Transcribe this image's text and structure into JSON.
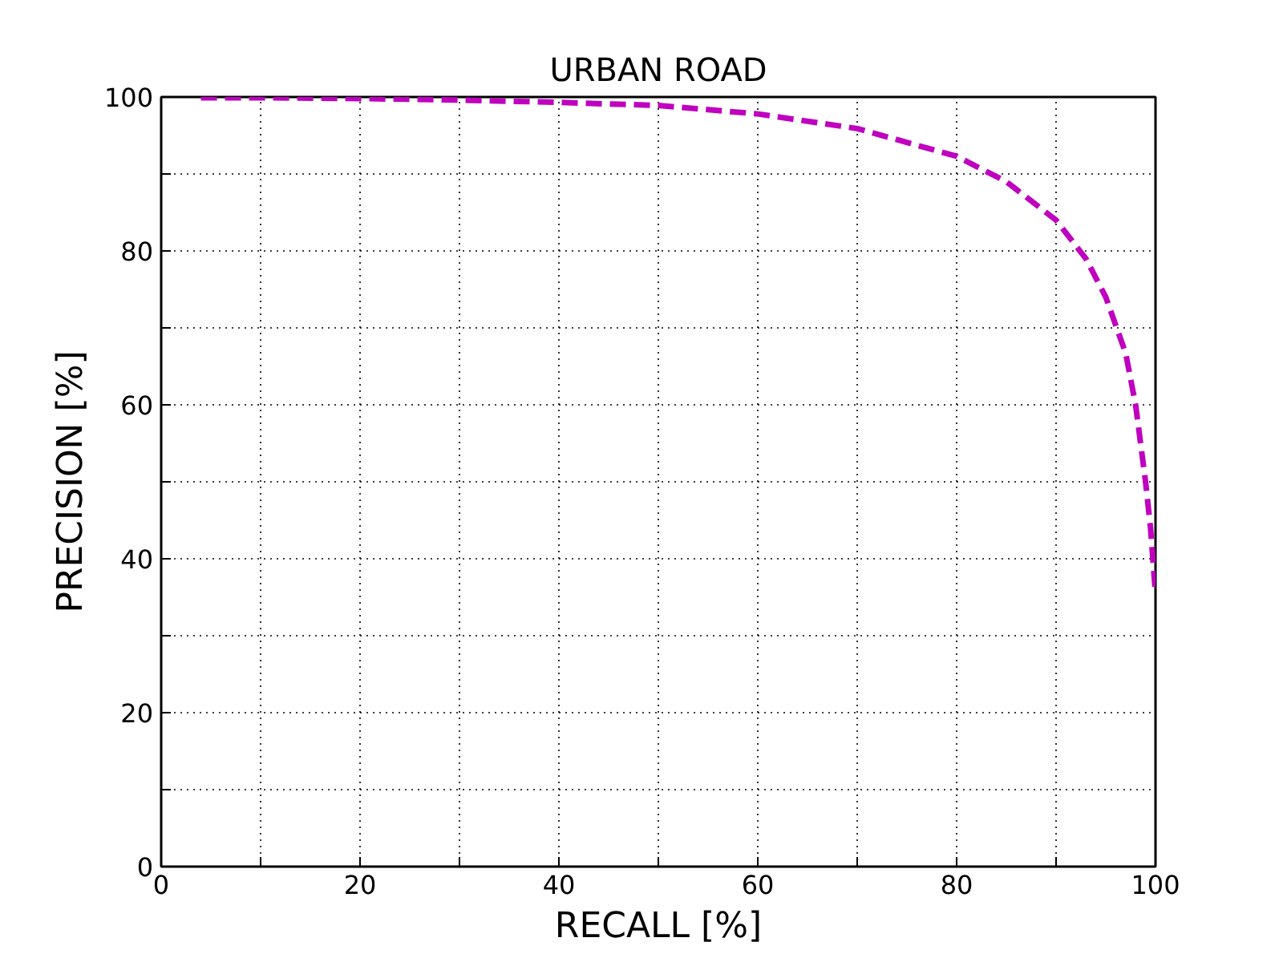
{
  "chart_data": {
    "type": "line",
    "title": "URBAN ROAD",
    "xlabel": "RECALL [%]",
    "ylabel": "PRECISION [%]",
    "x": [
      4,
      10,
      20,
      30,
      40,
      50,
      60,
      70,
      80,
      85,
      90,
      93,
      95,
      97,
      98,
      99,
      99.5,
      100
    ],
    "series": [
      {
        "color": "#bf00bf",
        "values": [
          99.9,
          99.9,
          99.8,
          99.6,
          99.3,
          98.9,
          97.8,
          95.9,
          92.3,
          89,
          84,
          79,
          74,
          66.7,
          60,
          50,
          44,
          35.4
        ]
      }
    ],
    "xlim": [
      0,
      100
    ],
    "ylim": [
      0,
      100
    ],
    "xticks": [
      0,
      {
        "value": 10,
        "label": null
      },
      20,
      {
        "value": 30,
        "label": null
      },
      40,
      {
        "value": 50,
        "label": null
      },
      60,
      {
        "value": 70,
        "label": null
      },
      80,
      {
        "value": 90,
        "label": null
      },
      100
    ],
    "yticks": [
      0,
      {
        "value": 10,
        "label": null
      },
      20,
      {
        "value": 30,
        "label": null
      },
      40,
      {
        "value": 50,
        "label": null
      },
      60,
      {
        "value": 70,
        "label": null
      },
      80,
      {
        "value": 90,
        "label": null
      },
      100
    ],
    "grid": true,
    "marker": "none",
    "line_style": "dashed"
  }
}
